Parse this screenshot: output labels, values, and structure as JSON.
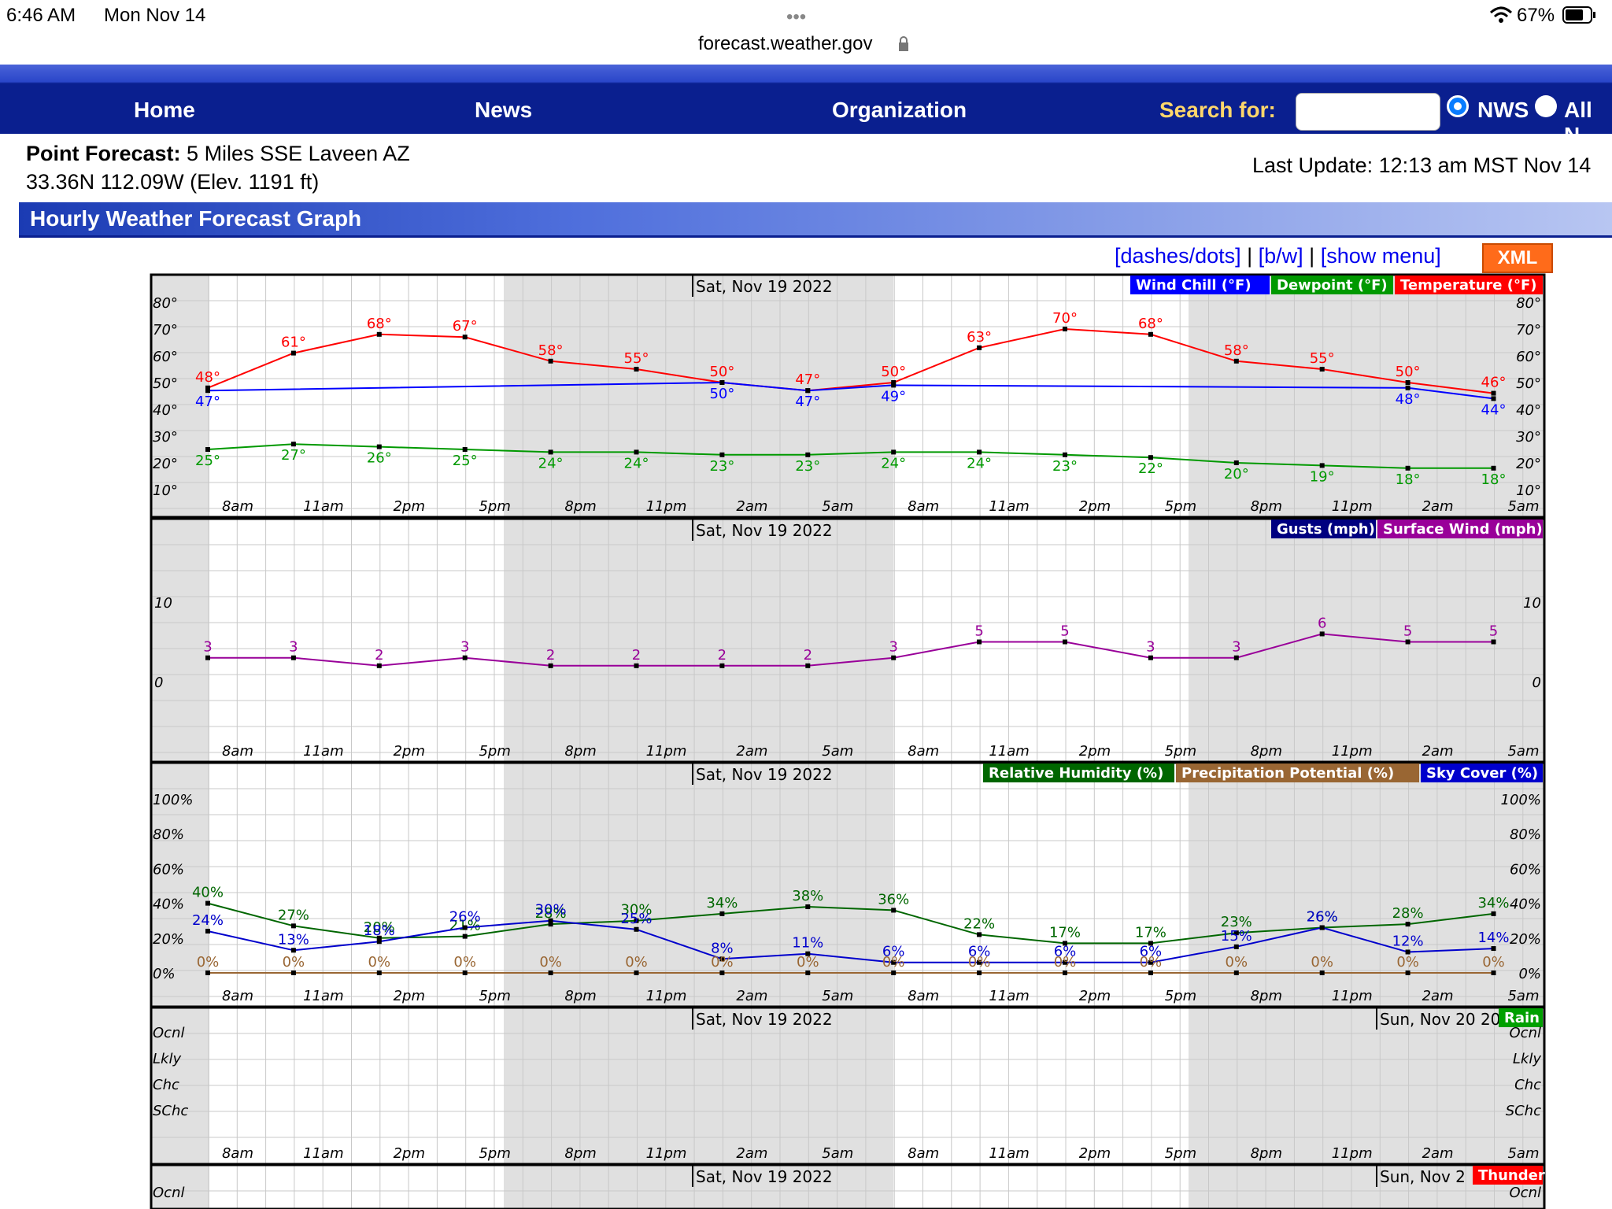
{
  "status_bar": {
    "time": "6:46 AM",
    "date": "Mon Nov 14",
    "dots": "•••",
    "url": "forecast.weather.gov",
    "battery": "67%"
  },
  "nav": {
    "home": "Home",
    "news": "News",
    "organization": "Organization",
    "search_label": "Search for:",
    "search_value": "",
    "radio_nws": "NWS",
    "radio_all": "All N"
  },
  "header": {
    "point_label": "Point Forecast:",
    "point_value": "5 Miles SSE Laveen AZ",
    "coords": "33.36N 112.09W (Elev. 1191 ft)",
    "last_update": "Last Update: 12:13 am MST Nov 14"
  },
  "title": "Hourly Weather Forecast Graph",
  "links": {
    "dashes": "[dashes/dots]",
    "sep1": " | ",
    "bw": "[b/w]",
    "sep2": " | ",
    "menu": "[show menu]",
    "xml": "XML"
  },
  "colors": {
    "temperature": "#ff0000",
    "wind_chill": "#0000ff",
    "dewpoint": "#009900",
    "gusts": "#000080",
    "surface_wind": "#990099",
    "humidity": "#006600",
    "precip": "#996633",
    "sky": "#0000cc",
    "rain": "#00a000",
    "thunder": "#ff0000",
    "shade": "#e0e0e0",
    "grid": "#c8c8c8",
    "nav_bg": "#0a1f8f"
  },
  "chart_data": [
    {
      "type": "line",
      "date_label": "Sat, Nov 19 2022",
      "x": [
        "8am",
        "11am",
        "2pm",
        "5pm",
        "8pm",
        "11pm",
        "2am",
        "5am",
        "8am",
        "11am",
        "2pm",
        "5pm",
        "8pm",
        "11pm",
        "2am",
        "5am"
      ],
      "y_ticks": [
        "80°",
        "70°",
        "60°",
        "50°",
        "40°",
        "30°",
        "20°",
        "10°"
      ],
      "ylim": [
        10,
        80
      ],
      "legend": [
        "Wind Chill (°F)",
        "Dewpoint (°F)",
        "Temperature (°F)"
      ],
      "series": [
        {
          "name": "Temperature (°F)",
          "values": [
            48,
            61,
            68,
            67,
            58,
            55,
            50,
            47,
            50,
            63,
            70,
            68,
            58,
            55,
            50,
            46
          ],
          "labels": [
            "48°",
            "61°",
            "68°",
            "67°",
            "58°",
            "55°",
            "50°",
            "47°",
            "50°",
            "63°",
            "70°",
            "68°",
            "58°",
            "55°",
            "50°",
            "46°"
          ]
        },
        {
          "name": "Wind Chill (°F)",
          "values": [
            47,
            null,
            null,
            null,
            null,
            null,
            50,
            47,
            49,
            null,
            null,
            null,
            null,
            null,
            48,
            44
          ],
          "labels": [
            "47°",
            "",
            "",
            "",
            "",
            "",
            "50°",
            "47°",
            "49°",
            "",
            "",
            "",
            "",
            "",
            "48°",
            "44°"
          ]
        },
        {
          "name": "Dewpoint (°F)",
          "values": [
            25,
            27,
            26,
            25,
            24,
            24,
            23,
            23,
            24,
            24,
            23,
            22,
            20,
            19,
            18,
            18
          ],
          "labels": [
            "25°",
            "27°",
            "26°",
            "25°",
            "24°",
            "24°",
            "23°",
            "23°",
            "24°",
            "24°",
            "23°",
            "22°",
            "20°",
            "19°",
            "18°",
            "18°"
          ]
        }
      ]
    },
    {
      "type": "line",
      "date_label": "Sat, Nov 19 2022",
      "x": [
        "8am",
        "11am",
        "2pm",
        "5pm",
        "8pm",
        "11pm",
        "2am",
        "5am",
        "8am",
        "11am",
        "2pm",
        "5pm",
        "8pm",
        "11pm",
        "2am",
        "5am"
      ],
      "y_ticks": [
        "10",
        "0"
      ],
      "ylim": [
        0,
        10
      ],
      "legend": [
        "Gusts (mph)",
        "Surface Wind (mph)"
      ],
      "series": [
        {
          "name": "Surface Wind (mph)",
          "values": [
            3,
            3,
            2,
            3,
            2,
            2,
            2,
            2,
            3,
            5,
            5,
            3,
            3,
            6,
            5,
            5
          ],
          "labels": [
            "3",
            "3",
            "2",
            "3",
            "2",
            "2",
            "2",
            "2",
            "3",
            "5",
            "5",
            "3",
            "3",
            "6",
            "5",
            "5"
          ]
        }
      ]
    },
    {
      "type": "line",
      "date_label": "Sat, Nov 19 2022",
      "x": [
        "8am",
        "11am",
        "2pm",
        "5pm",
        "8pm",
        "11pm",
        "2am",
        "5am",
        "8am",
        "11am",
        "2pm",
        "5pm",
        "8pm",
        "11pm",
        "2am",
        "5am"
      ],
      "y_ticks": [
        "100%",
        "80%",
        "60%",
        "40%",
        "20%",
        "0%"
      ],
      "ylim": [
        0,
        100
      ],
      "legend": [
        "Relative Humidity (%)",
        "Precipitation Potential (%)",
        "Sky Cover (%)"
      ],
      "series": [
        {
          "name": "Relative Humidity (%)",
          "values": [
            40,
            27,
            20,
            21,
            28,
            30,
            34,
            38,
            36,
            22,
            17,
            17,
            23,
            26,
            28,
            34
          ],
          "labels": [
            "40%",
            "27%",
            "20%",
            "21%",
            "28%",
            "30%",
            "34%",
            "38%",
            "36%",
            "22%",
            "17%",
            "17%",
            "23%",
            "26%",
            "28%",
            "34%"
          ]
        },
        {
          "name": "Sky Cover (%)",
          "values": [
            24,
            13,
            18,
            26,
            30,
            25,
            8,
            11,
            6,
            6,
            6,
            6,
            15,
            26,
            12,
            14
          ],
          "labels": [
            "24%",
            "13%",
            "18%",
            "26%",
            "30%",
            "25%",
            "8%",
            "11%",
            "6%",
            "6%",
            "6%",
            "6%",
            "15%",
            "26%",
            "12%",
            "14%"
          ]
        },
        {
          "name": "Precipitation Potential (%)",
          "values": [
            0,
            0,
            0,
            0,
            0,
            0,
            0,
            0,
            0,
            0,
            0,
            0,
            0,
            0,
            0,
            0
          ],
          "labels": [
            "0%",
            "0%",
            "0%",
            "0%",
            "0%",
            "0%",
            "0%",
            "0%",
            "0%",
            "0%",
            "0%",
            "0%",
            "0%",
            "0%",
            "0%",
            "0%"
          ]
        }
      ]
    },
    {
      "type": "line",
      "date_label": "Sat, Nov 19 2022",
      "date_label_2": "Sun, Nov 20 20",
      "x": [
        "8am",
        "11am",
        "2pm",
        "5pm",
        "8pm",
        "11pm",
        "2am",
        "5am",
        "8am",
        "11am",
        "2pm",
        "5pm",
        "8pm",
        "11pm",
        "2am",
        "5am"
      ],
      "y_ticks": [
        "Ocnl",
        "Lkly",
        "Chc",
        "SChc"
      ],
      "legend": [
        "Rain"
      ],
      "series": []
    },
    {
      "type": "line",
      "date_label": "Sat, Nov 19 2022",
      "date_label_2": "Sun, Nov 2",
      "y_ticks": [
        "Ocnl"
      ],
      "legend": [
        "Thunder"
      ],
      "series": []
    }
  ]
}
